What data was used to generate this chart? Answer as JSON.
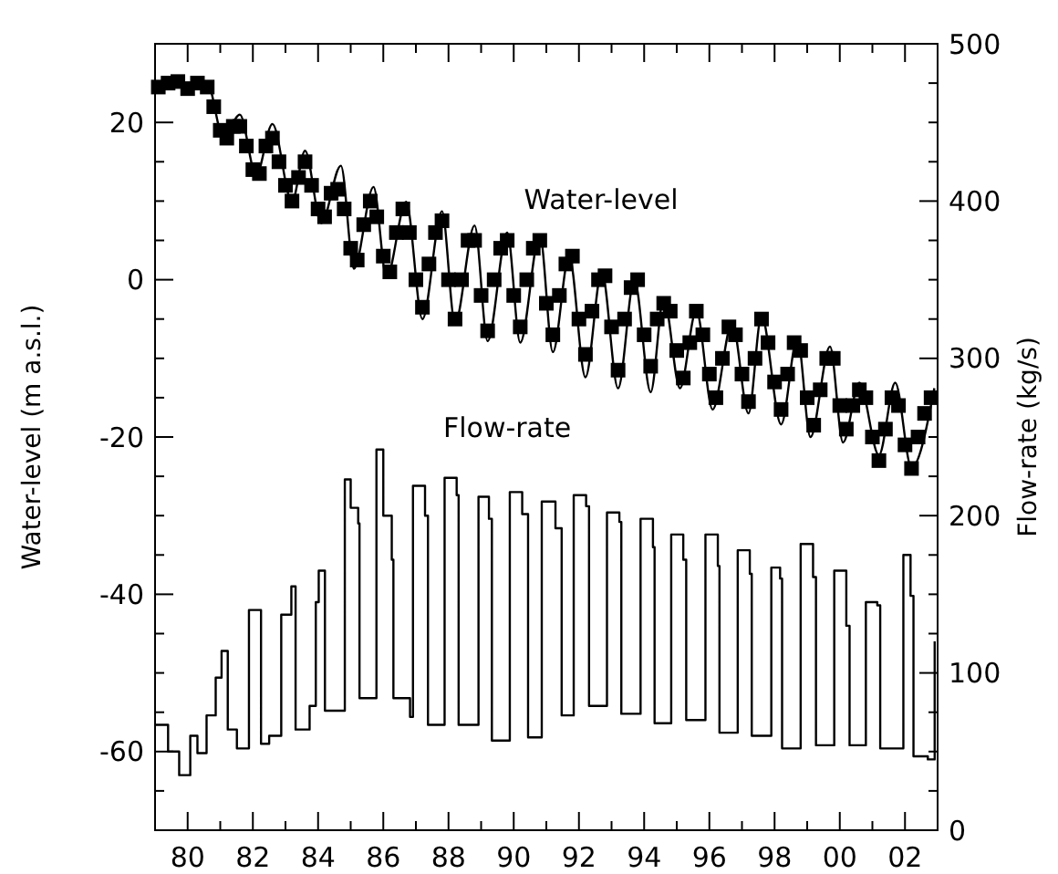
{
  "chart_data": {
    "type": "line",
    "ylabel": "Water-level (m a.s.l.)",
    "y2label": "Flow-rate (kg/s)",
    "xlim": [
      1979,
      2003
    ],
    "xticks": [
      {
        "value": 1979,
        "label": null
      },
      {
        "value": 1980,
        "label": "80"
      },
      {
        "value": 1981,
        "label": null
      },
      {
        "value": 1982,
        "label": "82"
      },
      {
        "value": 1983,
        "label": null
      },
      {
        "value": 1984,
        "label": "84"
      },
      {
        "value": 1985,
        "label": null
      },
      {
        "value": 1986,
        "label": "86"
      },
      {
        "value": 1987,
        "label": null
      },
      {
        "value": 1988,
        "label": "88"
      },
      {
        "value": 1989,
        "label": null
      },
      {
        "value": 1990,
        "label": "90"
      },
      {
        "value": 1991,
        "label": null
      },
      {
        "value": 1992,
        "label": "92"
      },
      {
        "value": 1993,
        "label": null
      },
      {
        "value": 1994,
        "label": "94"
      },
      {
        "value": 1995,
        "label": null
      },
      {
        "value": 1996,
        "label": "96"
      },
      {
        "value": 1997,
        "label": null
      },
      {
        "value": 1998,
        "label": "98"
      },
      {
        "value": 1999,
        "label": null
      },
      {
        "value": 2000,
        "label": "00"
      },
      {
        "value": 2001,
        "label": null
      },
      {
        "value": 2002,
        "label": "02"
      }
    ],
    "ylim": [
      -70,
      30
    ],
    "yticks": [
      {
        "value": -65,
        "label": null
      },
      -60,
      {
        "value": -55,
        "label": null
      },
      {
        "value": -50,
        "label": null
      },
      {
        "value": -45,
        "label": null
      },
      -40,
      {
        "value": -35,
        "label": null
      },
      {
        "value": -30,
        "label": null
      },
      {
        "value": -25,
        "label": null
      },
      -20,
      {
        "value": -15,
        "label": null
      },
      {
        "value": -10,
        "label": null
      },
      {
        "value": -5,
        "label": null
      },
      0,
      {
        "value": 5,
        "label": null
      },
      {
        "value": 10,
        "label": null
      },
      {
        "value": 15,
        "label": null
      },
      20,
      {
        "value": 25,
        "label": null
      }
    ],
    "y2lim": [
      0,
      500
    ],
    "y2ticks": [
      0,
      {
        "value": 25,
        "label": null
      },
      {
        "value": 50,
        "label": null
      },
      {
        "value": 75,
        "label": null
      },
      100,
      {
        "value": 125,
        "label": null
      },
      {
        "value": 150,
        "label": null
      },
      {
        "value": 175,
        "label": null
      },
      200,
      {
        "value": 225,
        "label": null
      },
      {
        "value": 250,
        "label": null
      },
      {
        "value": 275,
        "label": null
      },
      300,
      {
        "value": 325,
        "label": null
      },
      {
        "value": 350,
        "label": null
      },
      {
        "value": 375,
        "label": null
      },
      400,
      {
        "value": 425,
        "label": null
      },
      {
        "value": 450,
        "label": null
      },
      {
        "value": 475,
        "label": null
      },
      500
    ],
    "grid": false,
    "annotations": [
      "Water-level",
      "Flow-rate"
    ],
    "series": [
      {
        "color": "#000000",
        "marker": "none",
        "x": [
          1979.0,
          1979.5,
          1980.0,
          1980.6,
          1981.1,
          1981.6,
          1982.1,
          1982.6,
          1983.2,
          1983.6,
          1984.1,
          1984.7,
          1985.1,
          1985.7,
          1986.1,
          1986.7,
          1987.2,
          1987.8,
          1988.2,
          1988.8,
          1989.2,
          1989.8,
          1990.2,
          1990.8,
          1991.2,
          1991.7,
          1992.2,
          1992.7,
          1993.2,
          1993.7,
          1994.2,
          1994.6,
          1995.1,
          1995.6,
          1996.1,
          1996.7,
          1997.2,
          1997.6,
          1998.2,
          1998.7,
          1999.1,
          1999.7,
          2000.1,
          2000.6,
          2001.2,
          2001.7,
          2002.2,
          2002.9
        ],
        "values": [
          24.4,
          25,
          24.5,
          25,
          18,
          21,
          13.3,
          19.8,
          9.9,
          16.4,
          7.2,
          14.5,
          1.4,
          11.8,
          0.3,
          9.9,
          -5,
          8.7,
          -5.5,
          6.9,
          -7.8,
          6,
          -8,
          5.7,
          -9.2,
          3,
          -12.4,
          1,
          -13.8,
          0,
          -14.3,
          -2.3,
          -13.8,
          -3.9,
          -16.5,
          -5.5,
          -17,
          -4.6,
          -18.4,
          -7.4,
          -20,
          -8.5,
          -20.7,
          -13.1,
          -22.3,
          -13.1,
          -23.9,
          -13.8
        ]
      },
      {
        "type": "scatter",
        "color": "#000000",
        "marker": "square",
        "x": [
          1979.1,
          1979.4,
          1979.7,
          1980.0,
          1980.3,
          1980.6,
          1980.8,
          1981.0,
          1981.2,
          1981.4,
          1981.6,
          1981.8,
          1982.0,
          1982.2,
          1982.4,
          1982.6,
          1982.8,
          1983.0,
          1983.2,
          1983.4,
          1983.6,
          1983.8,
          1984.0,
          1984.2,
          1984.4,
          1984.6,
          1984.8,
          1985.0,
          1985.2,
          1985.4,
          1985.6,
          1985.8,
          1986.0,
          1986.2,
          1986.4,
          1986.6,
          1986.8,
          1987.0,
          1987.2,
          1987.4,
          1987.6,
          1987.8,
          1988.0,
          1988.2,
          1988.4,
          1988.6,
          1988.8,
          1989.0,
          1989.2,
          1989.4,
          1989.6,
          1989.8,
          1990.0,
          1990.2,
          1990.4,
          1990.6,
          1990.8,
          1991.0,
          1991.2,
          1991.4,
          1991.6,
          1991.8,
          1992.0,
          1992.2,
          1992.4,
          1992.6,
          1992.8,
          1993.0,
          1993.2,
          1993.4,
          1993.6,
          1993.8,
          1994.0,
          1994.2,
          1994.4,
          1994.6,
          1994.8,
          1995.0,
          1995.2,
          1995.4,
          1995.6,
          1995.8,
          1996.0,
          1996.2,
          1996.4,
          1996.6,
          1996.8,
          1997.0,
          1997.2,
          1997.4,
          1997.6,
          1997.8,
          1998.0,
          1998.2,
          1998.4,
          1998.6,
          1998.8,
          1999.0,
          1999.2,
          1999.4,
          1999.6,
          1999.8,
          2000.0,
          2000.2,
          2000.4,
          2000.6,
          2000.8,
          2001.0,
          2001.2,
          2001.4,
          2001.6,
          2001.8,
          2002.0,
          2002.2,
          2002.4,
          2002.6,
          2002.8
        ],
        "values": [
          24.5,
          25,
          25.2,
          24.3,
          25,
          24.5,
          22,
          19,
          18,
          19.5,
          19.5,
          17,
          14,
          13.5,
          17,
          18,
          15,
          12,
          10,
          13,
          15,
          12,
          9,
          8,
          11,
          11.5,
          9,
          4,
          2.5,
          7,
          10,
          8,
          3,
          1,
          6,
          9,
          6,
          0,
          -3.5,
          2,
          6,
          7.5,
          0,
          -5,
          0,
          5,
          5,
          -2,
          -6.5,
          0,
          4,
          5,
          -2,
          -6,
          0,
          4,
          5,
          -3,
          -7,
          -2,
          2,
          3,
          -5,
          -9.5,
          -4,
          0,
          0.5,
          -6,
          -11.5,
          -5,
          -1,
          0,
          -7,
          -11,
          -5,
          -3,
          -4,
          -9,
          -12.5,
          -8,
          -4,
          -7,
          -12,
          -15,
          -10,
          -6,
          -7,
          -12,
          -15.5,
          -10,
          -5,
          -8,
          -13,
          -16.5,
          -12,
          -8,
          -9,
          -15,
          -18.5,
          -14,
          -10,
          -10,
          -16,
          -19,
          -16,
          -14,
          -15,
          -20,
          -23,
          -19,
          -15,
          -16,
          -21,
          -24,
          -20,
          -17,
          -15
        ]
      },
      {
        "type": "step",
        "axis": "y2",
        "color": "#000000",
        "marker": "none",
        "x": [
          1979.0,
          1979.4,
          1979.74,
          1980.08,
          1980.3,
          1980.58,
          1980.86,
          1981.04,
          1981.23,
          1981.51,
          1981.88,
          1982.25,
          1982.5,
          1982.87,
          1983.18,
          1983.31,
          1983.74,
          1983.93,
          1984.02,
          1984.21,
          1984.82,
          1985.0,
          1985.23,
          1985.27,
          1985.79,
          1986.0,
          1986.26,
          1986.31,
          1986.82,
          1986.91,
          1987.28,
          1987.37,
          1987.88,
          1988.25,
          1988.31,
          1988.92,
          1989.24,
          1989.33,
          1989.88,
          1990.26,
          1990.44,
          1990.86,
          1991.28,
          1991.47,
          1991.84,
          1992.22,
          1992.31,
          1992.86,
          1993.24,
          1993.3,
          1993.89,
          1994.27,
          1994.32,
          1994.83,
          1995.2,
          1995.29,
          1995.88,
          1996.26,
          1996.31,
          1996.87,
          1997.24,
          1997.3,
          1997.9,
          1998.17,
          1998.23,
          1998.8,
          1999.18,
          1999.27,
          1999.83,
          2000.2,
          2000.3,
          2000.8,
          2001.15,
          2001.24,
          2001.95,
          2002.17,
          2002.26,
          2002.7,
          2002.91
        ],
        "values": [
          67,
          50,
          35,
          60,
          49,
          73,
          97,
          114,
          64,
          52,
          140,
          55,
          60,
          137,
          155,
          64,
          79,
          145,
          165,
          76,
          223,
          205,
          195,
          84,
          242,
          200,
          172,
          84,
          72,
          219,
          200,
          67,
          224,
          213,
          67,
          212,
          198,
          57,
          215,
          201,
          59,
          209,
          192,
          73,
          213,
          206,
          79,
          202,
          196,
          74,
          198,
          180,
          68,
          188,
          172,
          70,
          188,
          168,
          62,
          178,
          163,
          60,
          167,
          160,
          52,
          182,
          161,
          54,
          165,
          130,
          54,
          145,
          143,
          52,
          175,
          149,
          47,
          45,
          120
        ]
      }
    ]
  }
}
